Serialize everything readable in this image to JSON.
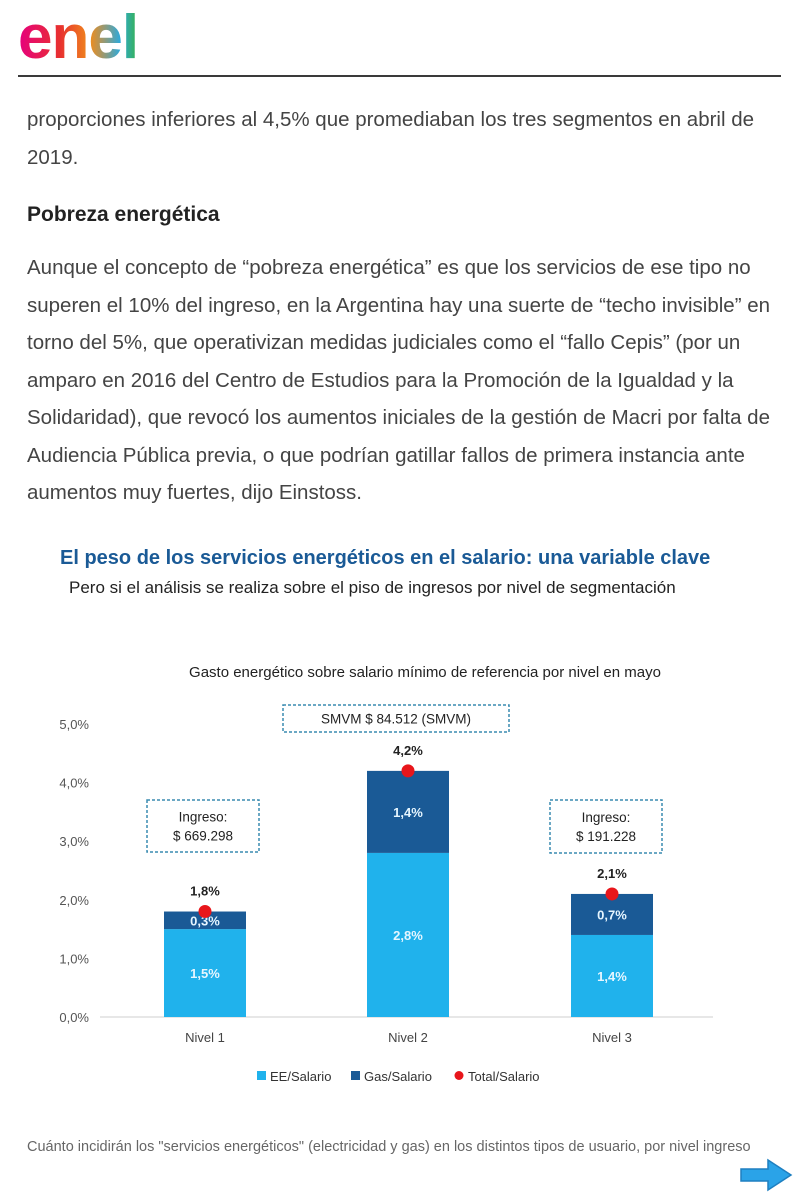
{
  "brand": {
    "logo_text": "enel"
  },
  "article": {
    "paragraph1": "proporciones inferiores al 4,5% que promediaban los tres segmentos en abril de 2019.",
    "heading": "Pobreza energética",
    "paragraph2": "Aunque el concepto de “pobreza energética” es que los servicios de ese tipo no superen el 10% del ingreso, en la Argentina hay una suerte de “techo invisible” en torno del 5%, que operativizan medidas judiciales como el “fallo Cepis” (por un amparo en 2016 del Centro de Estudios para la Promoción de la Igualdad y la Solidaridad), que revocó los aumentos iniciales de la gestión de Macri por falta de Audiencia Pública previa, o que podrían gatillar fallos de primera instancia ante aumentos muy fuertes, dijo Einstoss."
  },
  "figure": {
    "title": "El peso de los servicios energéticos en el salario: una variable clave",
    "subtitle": "Pero si el análisis se realiza sobre el piso de ingresos por nivel de segmentación",
    "caption": "Cuánto incidirán los \"servicios energéticos\" (electricidad y gas) en los distintos tipos de usuario, por nivel ingreso"
  },
  "chart_data": {
    "type": "bar",
    "title": "Gasto energético sobre salario mínimo de referencia por nivel en mayo",
    "categories": [
      "Nivel 1",
      "Nivel 2",
      "Nivel 3"
    ],
    "series": [
      {
        "name": "EE/Salario",
        "values": [
          1.5,
          2.8,
          1.4
        ],
        "labels": [
          "1,5%",
          "2,8%",
          "1,4%"
        ],
        "color": "#20b2ec"
      },
      {
        "name": "Gas/Salario",
        "values": [
          0.3,
          1.4,
          0.7
        ],
        "labels": [
          "0,3%",
          "1,4%",
          "0,7%"
        ],
        "color": "#1a5a96"
      },
      {
        "name": "Total/Salario",
        "values": [
          1.8,
          4.2,
          2.1
        ],
        "labels": [
          "1,8%",
          "4,2%",
          "2,1%"
        ],
        "color": "#e8161b"
      }
    ],
    "ylim": [
      0,
      5
    ],
    "yticks": [
      0,
      1,
      2,
      3,
      4,
      5
    ],
    "ytick_labels": [
      "0,0%",
      "1,0%",
      "2,0%",
      "3,0%",
      "4,0%",
      "5,0%"
    ],
    "annotations": [
      {
        "lines": [
          "SMVM $ 84.512 (SMVM)"
        ],
        "near": "Nivel 2"
      },
      {
        "lines": [
          "Ingreso:",
          "$ 669.298"
        ],
        "near": "Nivel 1"
      },
      {
        "lines": [
          "Ingreso:",
          "$ 191.228"
        ],
        "near": "Nivel 3"
      }
    ],
    "legend_position": "bottom"
  },
  "nav": {
    "next_icon": "arrow-right-icon"
  }
}
